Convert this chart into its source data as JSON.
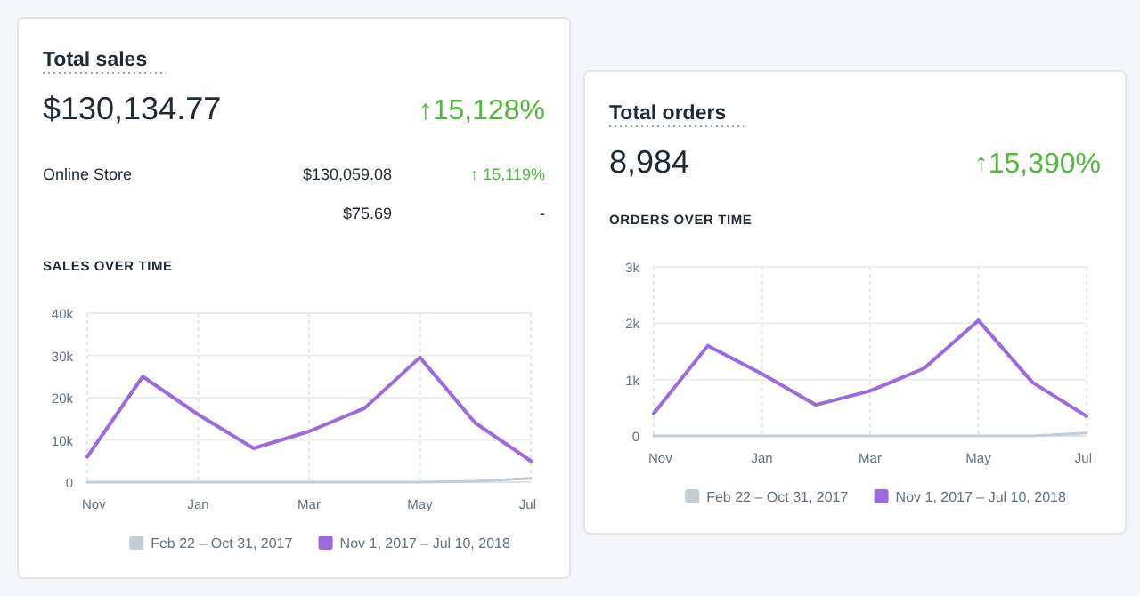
{
  "chart_data": [
    {
      "type": "line",
      "title": "Total sales",
      "subtitle": "SALES OVER TIME",
      "annotations": [
        "$130,134.77",
        "↑15,128%",
        "Online Store",
        "$130,059.08",
        "↑ 15,119%",
        "$75.69",
        "-"
      ],
      "categories": [
        "Nov",
        null,
        "Jan",
        null,
        "Mar",
        null,
        "May",
        null,
        "Jul"
      ],
      "series": [
        {
          "name": "Feb 22 – Oct 31, 2017",
          "color": "#c4cdd5",
          "values": [
            0,
            0,
            0,
            0,
            0,
            0,
            0,
            200,
            900
          ]
        },
        {
          "name": "Nov 1, 2017 – Jul 10, 2018",
          "color": "#9c6ade",
          "values": [
            6000,
            25000,
            16000,
            8000,
            12000,
            17500,
            29500,
            14000,
            5000
          ]
        }
      ],
      "ylim": [
        0,
        40000
      ],
      "yticks": [
        0,
        {
          "value": 10000,
          "label": "10k"
        },
        {
          "value": 20000,
          "label": "20k"
        },
        {
          "value": 30000,
          "label": "30k"
        },
        {
          "value": 40000,
          "label": "40k"
        }
      ],
      "grid": true,
      "legend": "bottom right"
    },
    {
      "type": "line",
      "title": "Total orders",
      "subtitle": "ORDERS OVER TIME",
      "annotations": [
        "8,984",
        "↑15,390%"
      ],
      "categories": [
        "Nov",
        null,
        "Jan",
        null,
        "Mar",
        null,
        "May",
        null,
        "Jul"
      ],
      "series": [
        {
          "name": "Feb 22 – Oct 31, 2017",
          "color": "#c4cdd5",
          "values": [
            0,
            0,
            0,
            0,
            0,
            0,
            0,
            0,
            50
          ]
        },
        {
          "name": "Nov 1, 2017 – Jul 10, 2018",
          "color": "#9c6ade",
          "values": [
            400,
            1600,
            1100,
            550,
            800,
            1200,
            2050,
            950,
            350
          ]
        }
      ],
      "ylim": [
        0,
        3000
      ],
      "yticks": [
        0,
        {
          "value": 1000,
          "label": "1k"
        },
        {
          "value": 2000,
          "label": "2k"
        },
        {
          "value": 3000,
          "label": "3k"
        }
      ],
      "grid": true,
      "legend": "bottom right"
    }
  ]
}
